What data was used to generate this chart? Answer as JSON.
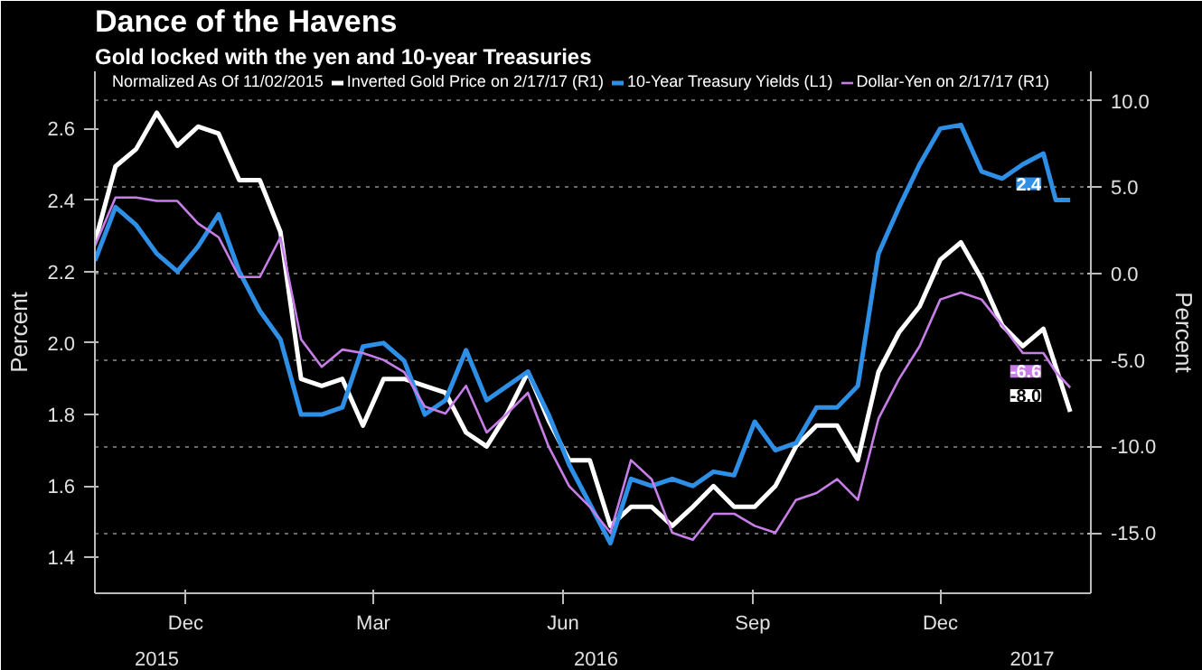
{
  "chart_data": {
    "type": "line",
    "title": "Dance of the Havens",
    "subtitle": "Gold locked with the yen and 10-year Treasuries",
    "legend_title": "Normalized As Of 11/02/2015",
    "ylabel": "Percent",
    "y2label": "Percent",
    "legend": "top",
    "grid": "y2",
    "line_style": "solid",
    "marker": "none",
    "x": [
      "2015-11-02",
      "2015-11-12",
      "2015-11-22",
      "2015-12-02",
      "2015-12-12",
      "2015-12-22",
      "2016-01-01",
      "2016-01-11",
      "2016-01-21",
      "2016-01-31",
      "2016-02-10",
      "2016-02-20",
      "2016-03-01",
      "2016-03-11",
      "2016-03-21",
      "2016-03-31",
      "2016-04-10",
      "2016-04-20",
      "2016-04-30",
      "2016-05-10",
      "2016-05-20",
      "2016-05-30",
      "2016-06-09",
      "2016-06-19",
      "2016-06-29",
      "2016-07-09",
      "2016-07-19",
      "2016-07-29",
      "2016-08-08",
      "2016-08-18",
      "2016-08-28",
      "2016-09-07",
      "2016-09-17",
      "2016-09-27",
      "2016-10-07",
      "2016-10-17",
      "2016-10-27",
      "2016-11-06",
      "2016-11-16",
      "2016-11-26",
      "2016-12-06",
      "2016-12-16",
      "2016-12-26",
      "2017-01-05",
      "2017-01-15",
      "2017-01-25",
      "2017-02-04",
      "2017-02-10",
      "2017-02-17"
    ],
    "series": [
      {
        "name": "Inverted Gold Price on 2/17/17 (R1)",
        "color": "#ffffff",
        "axis": "y2",
        "values": [
          1.8,
          6.2,
          7.2,
          9.3,
          7.4,
          8.5,
          8.1,
          5.4,
          5.4,
          2.4,
          -6.1,
          -6.5,
          -6.1,
          -8.8,
          -6.1,
          -6.1,
          -6.5,
          -6.9,
          -9.2,
          -10.0,
          -8.1,
          -5.7,
          -8.5,
          -10.8,
          -10.8,
          -14.6,
          -13.5,
          -13.5,
          -14.6,
          -13.5,
          -12.3,
          -13.5,
          -13.5,
          -12.3,
          -10.0,
          -8.8,
          -8.8,
          -10.8,
          -5.7,
          -3.4,
          -1.9,
          0.8,
          1.8,
          -0.3,
          -3.0,
          -4.2,
          -3.2,
          -5.4,
          -8.0
        ],
        "value_labels": [
          null,
          null,
          null,
          null,
          null,
          null,
          null,
          null,
          null,
          null,
          null,
          null,
          null,
          null,
          null,
          null,
          null,
          null,
          null,
          null,
          null,
          null,
          null,
          null,
          null,
          null,
          null,
          null,
          null,
          null,
          null,
          null,
          null,
          null,
          null,
          null,
          null,
          null,
          null,
          null,
          null,
          null,
          null,
          null,
          null,
          null,
          null,
          null,
          "-8.0"
        ]
      },
      {
        "name": "10-Year Treasury Yields (L1)",
        "color": "#2d8fe6",
        "values": [
          2.23,
          2.38,
          2.33,
          2.25,
          2.2,
          2.27,
          2.36,
          2.2,
          2.09,
          2.01,
          1.8,
          1.8,
          1.82,
          1.99,
          2.0,
          1.95,
          1.8,
          1.84,
          1.98,
          1.84,
          1.88,
          1.92,
          1.8,
          1.66,
          1.55,
          1.44,
          1.62,
          1.6,
          1.62,
          1.6,
          1.64,
          1.63,
          1.78,
          1.7,
          1.72,
          1.82,
          1.82,
          1.88,
          2.25,
          2.38,
          2.5,
          2.6,
          2.61,
          2.48,
          2.46,
          2.5,
          2.53,
          2.4,
          2.4
        ],
        "value_labels": [
          null,
          null,
          null,
          null,
          null,
          null,
          null,
          null,
          null,
          null,
          null,
          null,
          null,
          null,
          null,
          null,
          null,
          null,
          null,
          null,
          null,
          null,
          null,
          null,
          null,
          null,
          null,
          null,
          null,
          null,
          null,
          null,
          null,
          null,
          null,
          null,
          null,
          null,
          null,
          null,
          null,
          null,
          null,
          null,
          null,
          null,
          null,
          null,
          "2.4"
        ]
      },
      {
        "name": "Dollar-Yen on 2/17/17 (R1)",
        "color": "#c77ee8",
        "axis": "y2",
        "values": [
          1.6,
          4.4,
          4.4,
          4.2,
          4.2,
          2.9,
          2.1,
          -0.2,
          -0.2,
          2.1,
          -3.8,
          -5.4,
          -4.4,
          -4.6,
          -5.0,
          -5.7,
          -7.7,
          -8.1,
          -6.5,
          -9.2,
          -8.1,
          -6.9,
          -10.0,
          -12.3,
          -13.5,
          -15.0,
          -10.8,
          -11.9,
          -15.0,
          -15.4,
          -13.9,
          -13.9,
          -14.6,
          -15.0,
          -13.1,
          -12.7,
          -11.9,
          -13.1,
          -8.4,
          -6.1,
          -4.2,
          -1.5,
          -1.1,
          -1.5,
          -3.0,
          -4.6,
          -4.6,
          -5.7,
          -6.6
        ],
        "value_labels": [
          null,
          null,
          null,
          null,
          null,
          null,
          null,
          null,
          null,
          null,
          null,
          null,
          null,
          null,
          null,
          null,
          null,
          null,
          null,
          null,
          null,
          null,
          null,
          null,
          null,
          null,
          null,
          null,
          null,
          null,
          null,
          null,
          null,
          null,
          null,
          null,
          null,
          null,
          null,
          null,
          null,
          null,
          null,
          null,
          null,
          null,
          null,
          null,
          "-6.6"
        ]
      }
    ],
    "xlim": [
      "2015-11-02",
      "2017-02-27"
    ],
    "xticks": [
      {
        "value": "2015-12-16",
        "label": "Dec"
      },
      {
        "value": "2016-03-16",
        "label": "Mar"
      },
      {
        "value": "2016-06-16",
        "label": "Jun"
      },
      {
        "value": "2016-09-16",
        "label": "Sep"
      },
      {
        "value": "2016-12-16",
        "label": "Dec"
      }
    ],
    "annotations": [
      "2015",
      "2016",
      "2017"
    ],
    "ylim": [
      1.3,
      2.76
    ],
    "yticks": [
      {
        "value": 1.4,
        "label": "1.4"
      },
      {
        "value": 1.6,
        "label": "1.6"
      },
      {
        "value": 1.8,
        "label": "1.8"
      },
      {
        "value": 2.0,
        "label": "2.0"
      },
      {
        "value": 2.2,
        "label": "2.2"
      },
      {
        "value": 2.4,
        "label": "2.4"
      },
      {
        "value": 2.6,
        "label": "2.6"
      }
    ],
    "y2lim": [
      -18.5,
      11.7
    ],
    "y2ticks": [
      {
        "value": -15,
        "label": "-15.0"
      },
      {
        "value": -10,
        "label": "-10.0"
      },
      {
        "value": -5,
        "label": "-5.0"
      },
      {
        "value": 0,
        "label": "0.0"
      },
      {
        "value": 5,
        "label": "5.0"
      },
      {
        "value": 10,
        "label": "10.0"
      }
    ]
  }
}
